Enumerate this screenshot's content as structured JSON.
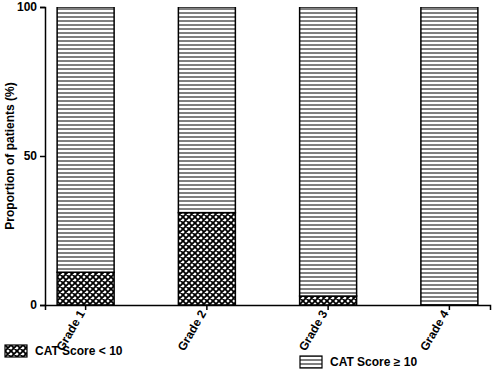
{
  "chart_data": {
    "type": "bar",
    "stacked": true,
    "y_label": "Proportion of patients (%)",
    "categories": [
      "Grade 1",
      "Grade 2",
      "Grade 3",
      "Grade 4"
    ],
    "series": [
      {
        "name": "CAT Score < 10",
        "color": "#000000",
        "values": [
          11,
          31,
          3,
          0
        ]
      },
      {
        "name": "CAT Score ≥ 10",
        "color": "#000000",
        "values": [
          89,
          69,
          97,
          100
        ]
      }
    ],
    "ylim": [
      0,
      100
    ],
    "yticks": [
      0,
      50,
      100
    ],
    "grid": false,
    "legend": "bottom"
  }
}
